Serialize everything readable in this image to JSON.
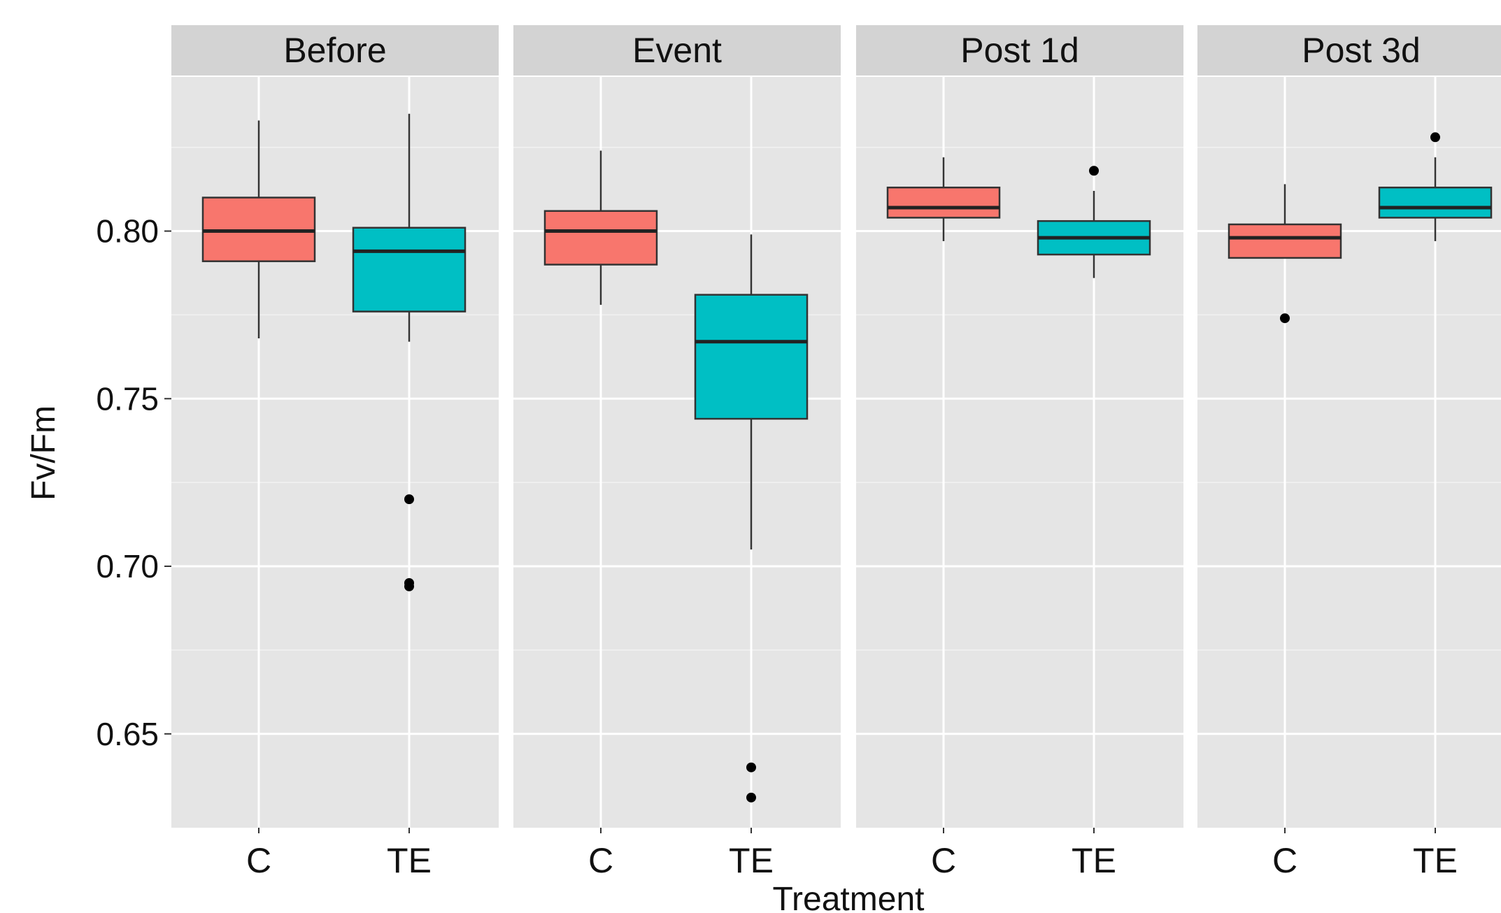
{
  "chart_data": {
    "type": "boxplot",
    "title": "",
    "xlabel": "Treatment",
    "ylabel": "Fv/Fm",
    "ylim": [
      0.622,
      0.846
    ],
    "yticks": [
      0.65,
      0.7,
      0.75,
      0.8
    ],
    "ytick_labels": [
      "0.65",
      "0.70",
      "0.75",
      "0.80"
    ],
    "grid": true,
    "categories": [
      "C",
      "TE"
    ],
    "colors": {
      "C": "#F8766D",
      "TE": "#00BFC4",
      "panel": "#E5E5E5",
      "strip": "#D3D3D3",
      "outlier": "#000000"
    },
    "panels": [
      {
        "label": "Before",
        "boxes": [
          {
            "category": "C",
            "whisker_low": 0.768,
            "q1": 0.791,
            "median": 0.8,
            "q3": 0.81,
            "whisker_high": 0.833,
            "outliers": []
          },
          {
            "category": "TE",
            "whisker_low": 0.767,
            "q1": 0.776,
            "median": 0.794,
            "q3": 0.801,
            "whisker_high": 0.835,
            "outliers": [
              0.72,
              0.695,
              0.694
            ]
          }
        ]
      },
      {
        "label": "Event",
        "boxes": [
          {
            "category": "C",
            "whisker_low": 0.778,
            "q1": 0.79,
            "median": 0.8,
            "q3": 0.806,
            "whisker_high": 0.824,
            "outliers": []
          },
          {
            "category": "TE",
            "whisker_low": 0.705,
            "q1": 0.744,
            "median": 0.767,
            "q3": 0.781,
            "whisker_high": 0.799,
            "outliers": [
              0.64,
              0.631
            ]
          }
        ]
      },
      {
        "label": "Post 1d",
        "boxes": [
          {
            "category": "C",
            "whisker_low": 0.797,
            "q1": 0.804,
            "median": 0.807,
            "q3": 0.813,
            "whisker_high": 0.822,
            "outliers": []
          },
          {
            "category": "TE",
            "whisker_low": 0.786,
            "q1": 0.793,
            "median": 0.798,
            "q3": 0.803,
            "whisker_high": 0.812,
            "outliers": [
              0.818
            ]
          }
        ]
      },
      {
        "label": "Post 3d",
        "boxes": [
          {
            "category": "C",
            "whisker_low": 0.792,
            "q1": 0.792,
            "median": 0.798,
            "q3": 0.802,
            "whisker_high": 0.814,
            "outliers": [
              0.774
            ]
          },
          {
            "category": "TE",
            "whisker_low": 0.797,
            "q1": 0.804,
            "median": 0.807,
            "q3": 0.813,
            "whisker_high": 0.822,
            "outliers": [
              0.828
            ]
          }
        ]
      }
    ]
  }
}
